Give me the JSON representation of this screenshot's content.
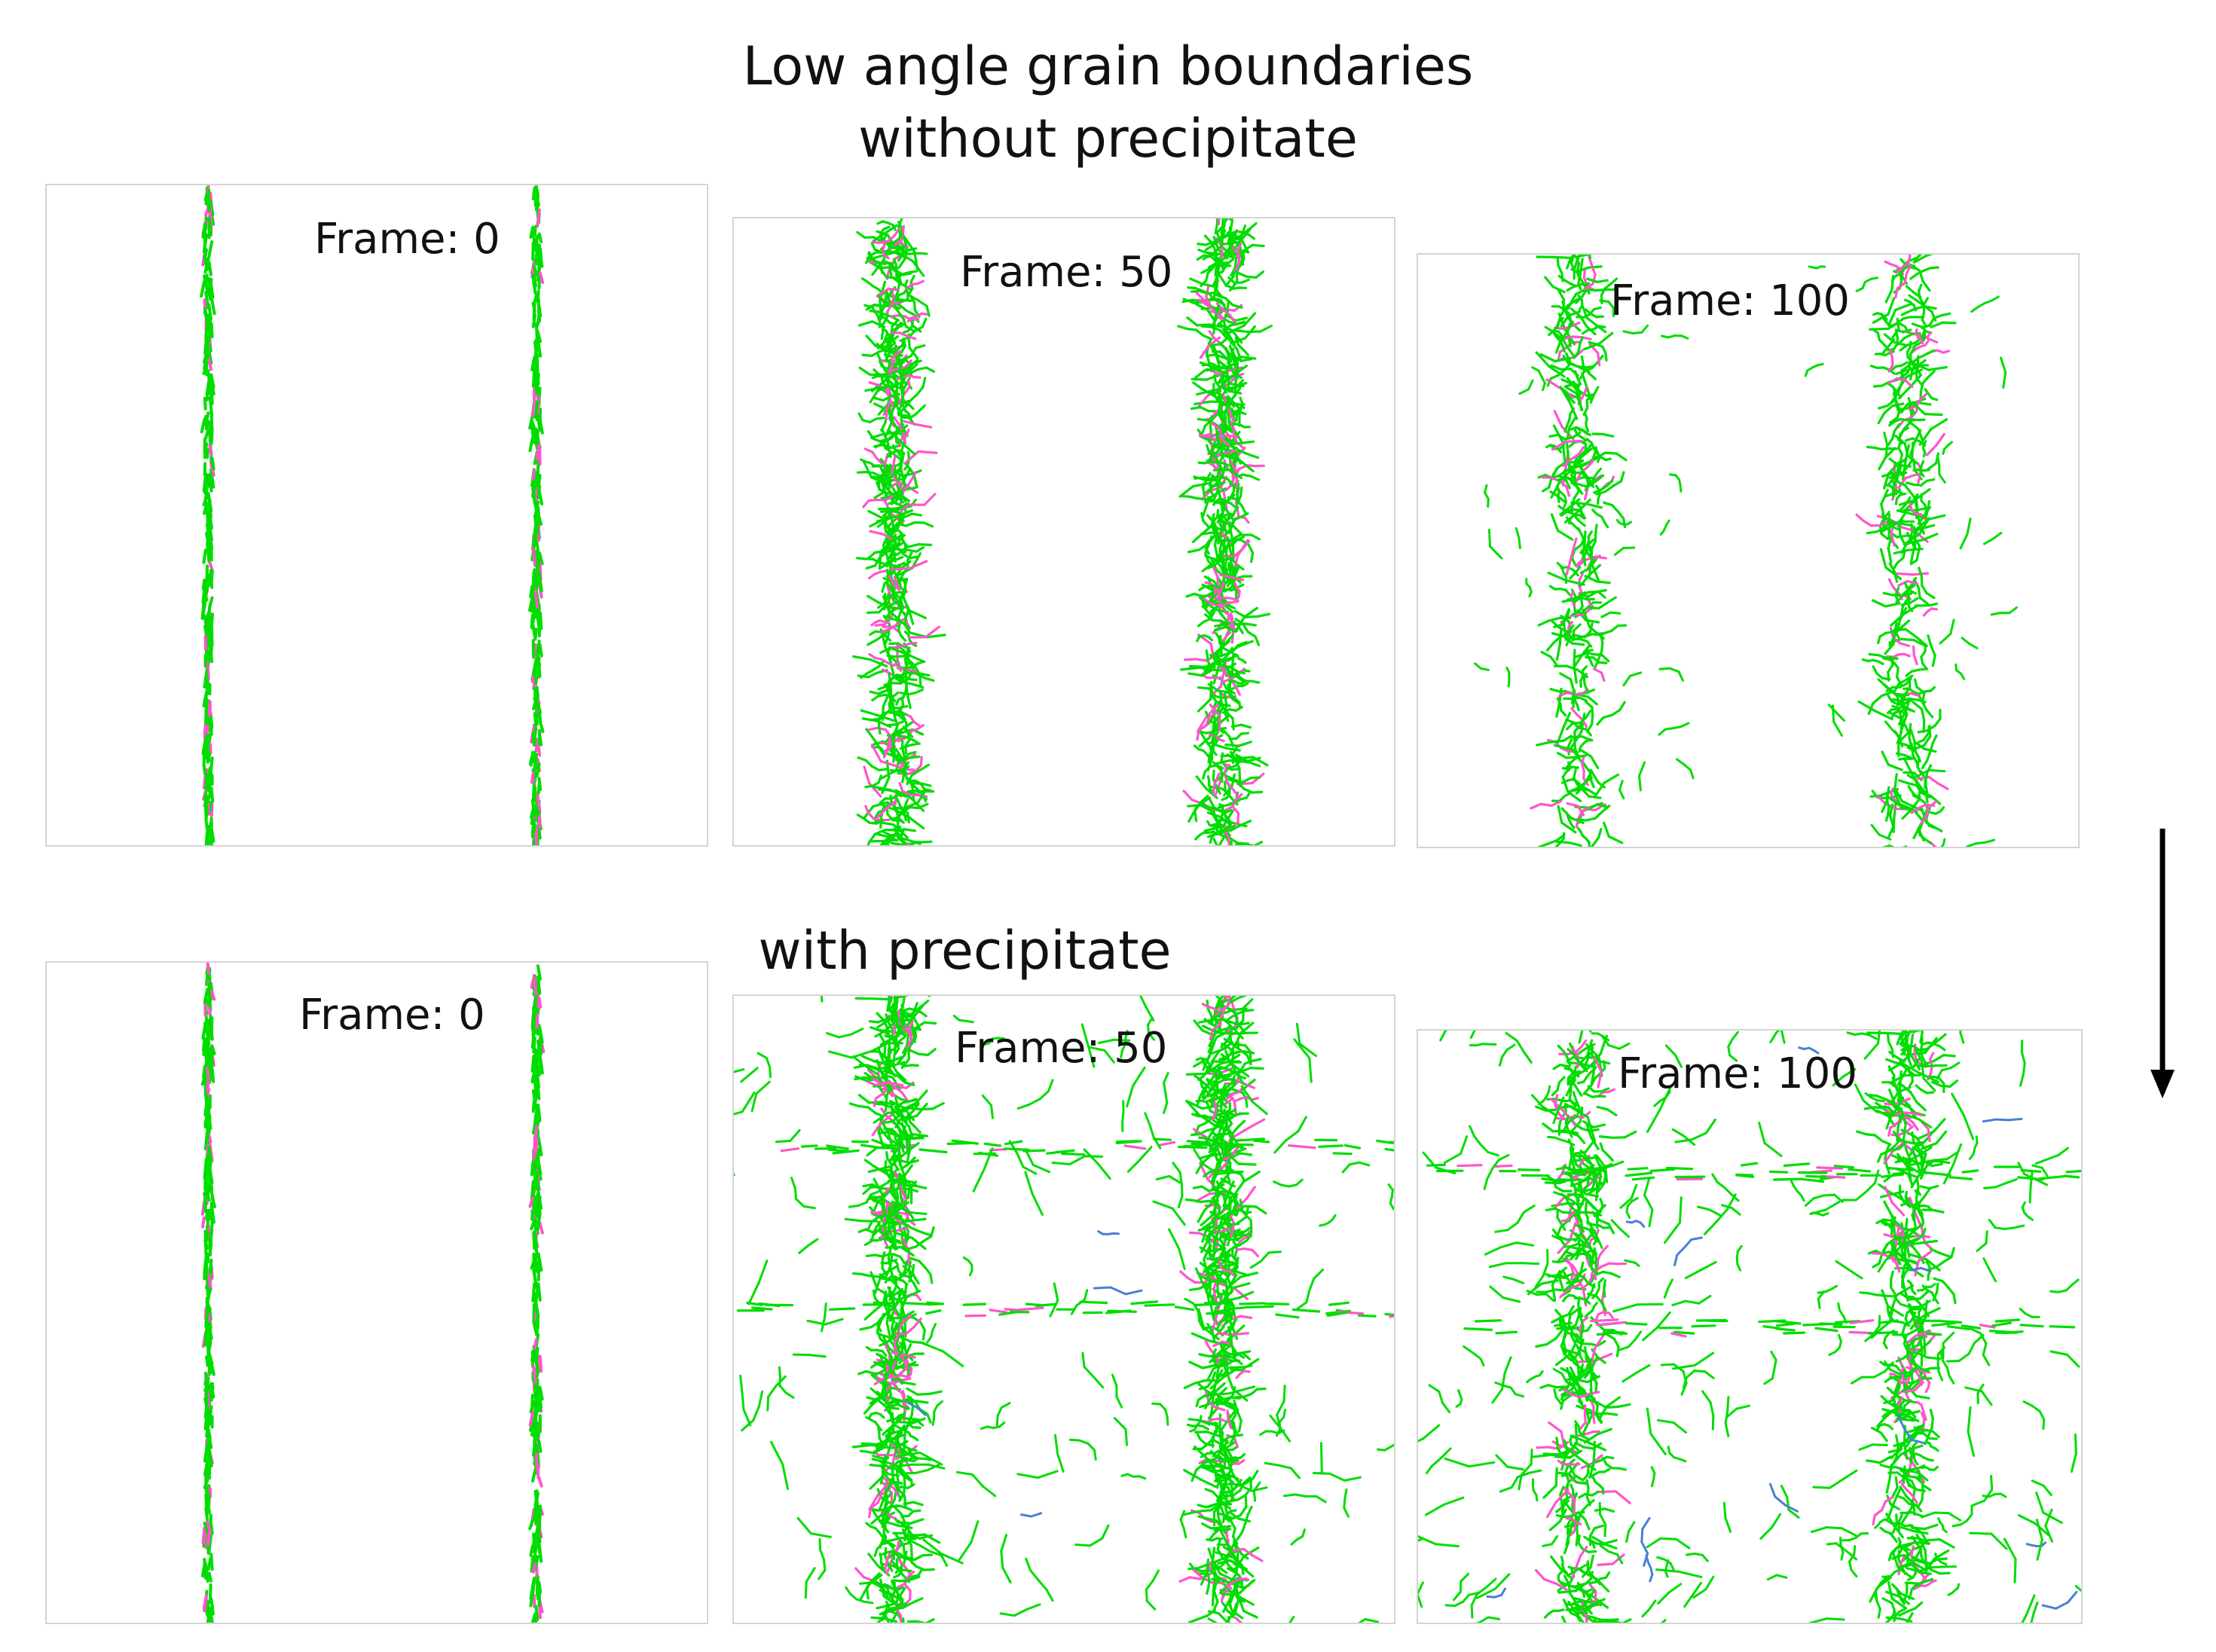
{
  "title": {
    "line1": "Low angle grain boundaries",
    "line2": "without precipitate"
  },
  "subtitle": "with precipitate",
  "rows": [
    {
      "key": "without",
      "panels": [
        {
          "label": "Frame: 0",
          "spread": 6,
          "density": 1.0,
          "precip": false
        },
        {
          "label": "Frame: 50",
          "spread": 22,
          "density": 1.0,
          "precip": false
        },
        {
          "label": "Frame: 100",
          "spread": 34,
          "density": 0.6,
          "precip": false
        }
      ]
    },
    {
      "key": "with",
      "panels": [
        {
          "label": "Frame: 0",
          "spread": 6,
          "density": 1.0,
          "precip": false
        },
        {
          "label": "Frame: 50",
          "spread": 22,
          "density": 1.0,
          "precip": true
        },
        {
          "label": "Frame: 100",
          "spread": 34,
          "density": 0.7,
          "precip": true
        }
      ]
    }
  ],
  "arrow": {
    "direction": "down"
  },
  "colors": {
    "dislocation": "#00dd00",
    "secondary": "#ff55cc",
    "tertiary": "#4a7fd6",
    "panel_border": "#d4d4d4",
    "arrow": "#000000"
  }
}
